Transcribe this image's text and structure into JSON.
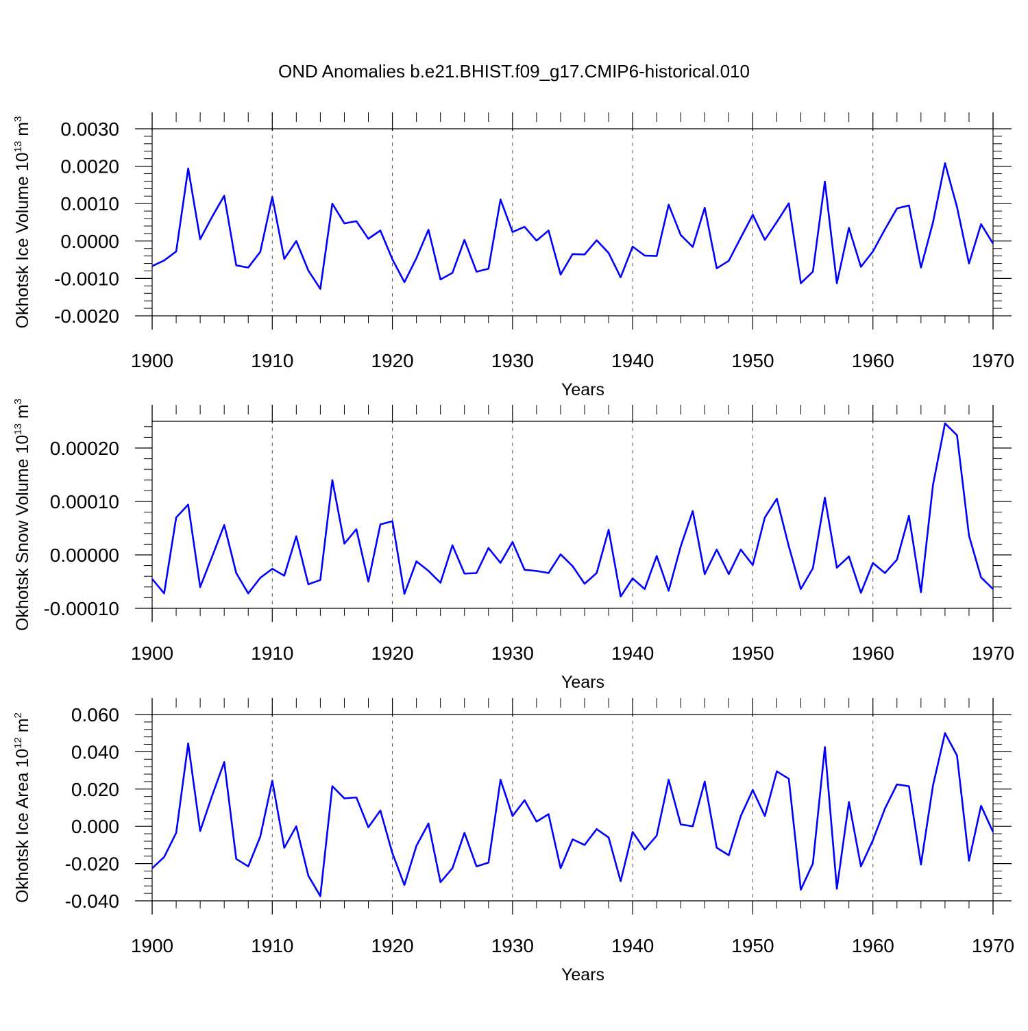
{
  "page_title": "OND Anomalies b.e21.BHIST.f09_g17.CMIP6-historical.010",
  "colors": {
    "series": "#0000ff",
    "axis": "#000000",
    "grid": "#555555"
  },
  "chart_data": [
    {
      "type": "line",
      "title": "OND Anomalies b.e21.BHIST.f09_g17.CMIP6-historical.010",
      "xlabel": "Years",
      "ylabel": "Okhotsk Ice Volume 10",
      "ylabel_exp": "13",
      "ylabel_unit": "m",
      "ylabel_unit_exp": "3",
      "xlim": [
        1900,
        1970
      ],
      "ylim": [
        -0.002,
        0.003
      ],
      "x_ticks": [
        1900,
        1910,
        1920,
        1930,
        1940,
        1950,
        1960,
        1970
      ],
      "x_tick_labels": [
        "1900",
        "1910",
        "1920",
        "1930",
        "1940",
        "1950",
        "1960",
        "1970"
      ],
      "y_ticks": [
        -0.002,
        -0.001,
        0.0,
        0.001,
        0.002,
        0.003
      ],
      "y_tick_labels": [
        "-0.0020",
        "-0.0010",
        "0.0000",
        "0.0010",
        "0.0020",
        "0.0030"
      ],
      "grid": "vertical dashed at decades",
      "series": [
        {
          "name": "Okhotsk Ice Volume",
          "x": [
            1900,
            1901,
            1902,
            1903,
            1904,
            1905,
            1906,
            1907,
            1908,
            1909,
            1910,
            1911,
            1912,
            1913,
            1914,
            1915,
            1916,
            1917,
            1918,
            1919,
            1920,
            1921,
            1922,
            1923,
            1924,
            1925,
            1926,
            1927,
            1928,
            1929,
            1930,
            1931,
            1932,
            1933,
            1934,
            1935,
            1936,
            1937,
            1938,
            1939,
            1940,
            1941,
            1942,
            1943,
            1944,
            1945,
            1946,
            1947,
            1948,
            1949,
            1950,
            1951,
            1952,
            1953,
            1954,
            1955,
            1956,
            1957,
            1958,
            1959,
            1960,
            1961,
            1962,
            1963,
            1964,
            1965,
            1966,
            1967,
            1968,
            1969,
            1970
          ],
          "values": [
            -0.00067,
            -0.00052,
            -0.00028,
            0.00194,
            5e-05,
            0.00065,
            0.00121,
            -0.00065,
            -0.00071,
            -0.00029,
            0.00118,
            -0.00048,
            0.0,
            -0.00079,
            -0.00128,
            0.001,
            0.00047,
            0.00053,
            6e-05,
            0.00028,
            -0.00049,
            -0.0011,
            -0.00046,
            0.0003,
            -0.00103,
            -0.00085,
            3e-05,
            -0.00082,
            -0.00074,
            0.00111,
            0.00024,
            0.00038,
            1e-05,
            0.00028,
            -0.0009,
            -0.00035,
            -0.00036,
            2e-05,
            -0.00032,
            -0.00097,
            -0.00015,
            -0.00039,
            -0.0004,
            0.00097,
            0.00016,
            -0.00016,
            0.00089,
            -0.00073,
            -0.00053,
            9e-05,
            0.0007,
            3e-05,
            0.00051,
            0.00101,
            -0.00113,
            -0.00082,
            0.00159,
            -0.00113,
            0.00035,
            -0.00069,
            -0.00028,
            0.00031,
            0.00087,
            0.00095,
            -0.00071,
            0.0005,
            0.00208,
            0.00091,
            -0.0006,
            0.00045,
            -7e-05
          ]
        }
      ]
    },
    {
      "type": "line",
      "xlabel": "Years",
      "ylabel": "Okhotsk Snow Volume 10",
      "ylabel_exp": "13",
      "ylabel_unit": "m",
      "ylabel_unit_exp": "3",
      "xlim": [
        1900,
        1970
      ],
      "ylim": [
        -0.0001,
        0.00025
      ],
      "x_ticks": [
        1900,
        1910,
        1920,
        1930,
        1940,
        1950,
        1960,
        1970
      ],
      "x_tick_labels": [
        "1900",
        "1910",
        "1920",
        "1930",
        "1940",
        "1950",
        "1960",
        "1970"
      ],
      "y_ticks": [
        -0.0001,
        0.0,
        0.0001,
        0.0002
      ],
      "y_tick_labels": [
        "-0.00010",
        "0.00000",
        "0.00010",
        "0.00020"
      ],
      "grid": "vertical dashed at decades",
      "series": [
        {
          "name": "Okhotsk Snow Volume",
          "x": [
            1900,
            1901,
            1902,
            1903,
            1904,
            1905,
            1906,
            1907,
            1908,
            1909,
            1910,
            1911,
            1912,
            1913,
            1914,
            1915,
            1916,
            1917,
            1918,
            1919,
            1920,
            1921,
            1922,
            1923,
            1924,
            1925,
            1926,
            1927,
            1928,
            1929,
            1930,
            1931,
            1932,
            1933,
            1934,
            1935,
            1936,
            1937,
            1938,
            1939,
            1940,
            1941,
            1942,
            1943,
            1944,
            1945,
            1946,
            1947,
            1948,
            1949,
            1950,
            1951,
            1952,
            1953,
            1954,
            1955,
            1956,
            1957,
            1958,
            1959,
            1960,
            1961,
            1962,
            1963,
            1964,
            1965,
            1966,
            1967,
            1968,
            1969,
            1970
          ],
          "values": [
            -4.5e-05,
            -7.2e-05,
            7e-05,
            9.4e-05,
            -6e-05,
            -3e-06,
            5.6e-05,
            -3.4e-05,
            -7.2e-05,
            -4.3e-05,
            -2.6e-05,
            -3.9e-05,
            3.5e-05,
            -5.5e-05,
            -4.7e-05,
            0.00014,
            2.1e-05,
            4.8e-05,
            -5e-05,
            5.7e-05,
            6.3e-05,
            -7.3e-05,
            -1.2e-05,
            -3e-05,
            -5.2e-05,
            1.8e-05,
            -3.5e-05,
            -3.4e-05,
            1.3e-05,
            -1.5e-05,
            2.4e-05,
            -2.8e-05,
            -3e-05,
            -3.4e-05,
            1e-06,
            -2.1e-05,
            -5.4e-05,
            -3.4e-05,
            4.7e-05,
            -7.8e-05,
            -4.4e-05,
            -6.4e-05,
            -2e-06,
            -6.7e-05,
            1.6e-05,
            8.2e-05,
            -3.6e-05,
            1e-05,
            -3.6e-05,
            1e-05,
            -1.9e-05,
            7e-05,
            0.000105,
            1.6e-05,
            -6.4e-05,
            -2.5e-05,
            0.000107,
            -2.4e-05,
            -3e-06,
            -7.1e-05,
            -1.5e-05,
            -3.4e-05,
            -9e-06,
            7.3e-05,
            -7e-05,
            0.000131,
            0.000246,
            0.000224,
            3.6e-05,
            -4.2e-05,
            -6.4e-05
          ]
        }
      ]
    },
    {
      "type": "line",
      "xlabel": "Years",
      "ylabel": "Okhotsk Ice Area 10",
      "ylabel_exp": "12",
      "ylabel_unit": "m",
      "ylabel_unit_exp": "2",
      "xlim": [
        1900,
        1970
      ],
      "ylim": [
        -0.04,
        0.06
      ],
      "x_ticks": [
        1900,
        1910,
        1920,
        1930,
        1940,
        1950,
        1960,
        1970
      ],
      "x_tick_labels": [
        "1900",
        "1910",
        "1920",
        "1930",
        "1940",
        "1950",
        "1960",
        "1970"
      ],
      "y_ticks": [
        -0.04,
        -0.02,
        0.0,
        0.02,
        0.04,
        0.06
      ],
      "y_tick_labels": [
        "-0.040",
        "-0.020",
        "0.000",
        "0.020",
        "0.040",
        "0.060"
      ],
      "grid": "vertical dashed at decades",
      "series": [
        {
          "name": "Okhotsk Ice Area",
          "x": [
            1900,
            1901,
            1902,
            1903,
            1904,
            1905,
            1906,
            1907,
            1908,
            1909,
            1910,
            1911,
            1912,
            1913,
            1914,
            1915,
            1916,
            1917,
            1918,
            1919,
            1920,
            1921,
            1922,
            1923,
            1924,
            1925,
            1926,
            1927,
            1928,
            1929,
            1930,
            1931,
            1932,
            1933,
            1934,
            1935,
            1936,
            1937,
            1938,
            1939,
            1940,
            1941,
            1942,
            1943,
            1944,
            1945,
            1946,
            1947,
            1948,
            1949,
            1950,
            1951,
            1952,
            1953,
            1954,
            1955,
            1956,
            1957,
            1958,
            1959,
            1960,
            1961,
            1962,
            1963,
            1964,
            1965,
            1966,
            1967,
            1968,
            1969,
            1970
          ],
          "values": [
            -0.0225,
            -0.0165,
            -0.0035,
            0.0445,
            -0.0025,
            0.0165,
            0.0345,
            -0.0175,
            -0.0215,
            -0.0055,
            0.0245,
            -0.0115,
            0.0,
            -0.0265,
            -0.0375,
            0.0215,
            0.015,
            0.0155,
            -0.0005,
            0.0085,
            -0.0145,
            -0.0315,
            -0.0105,
            0.0015,
            -0.03,
            -0.0225,
            -0.0035,
            -0.0215,
            -0.0195,
            0.025,
            0.0055,
            0.014,
            0.0025,
            0.0065,
            -0.0225,
            -0.007,
            -0.01,
            -0.0015,
            -0.006,
            -0.0295,
            -0.003,
            -0.0125,
            -0.005,
            0.025,
            0.001,
            0.0,
            0.024,
            -0.0115,
            -0.0155,
            0.0055,
            0.0195,
            0.0055,
            0.0295,
            0.0255,
            -0.034,
            -0.02,
            0.0425,
            -0.0335,
            0.013,
            -0.0215,
            -0.0075,
            0.0095,
            0.0225,
            0.0215,
            -0.0205,
            0.022,
            0.05,
            0.038,
            -0.0185,
            0.011,
            -0.003
          ]
        }
      ]
    }
  ]
}
